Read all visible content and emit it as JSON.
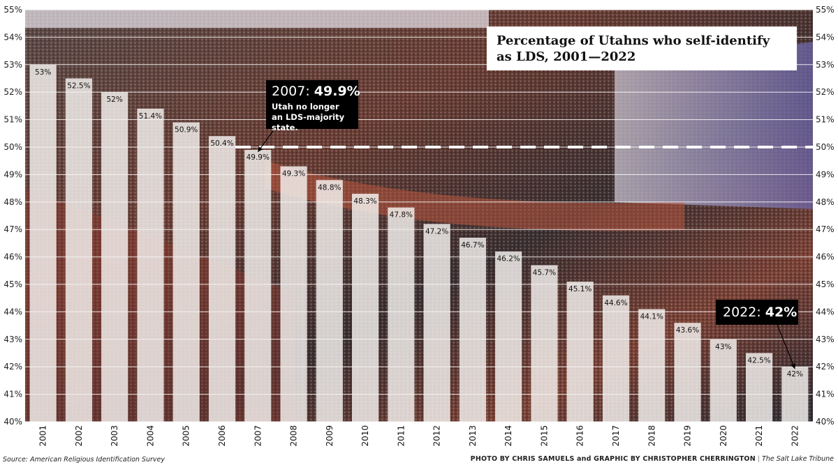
{
  "chart_data": {
    "type": "bar",
    "title": "Percentage of Utahns who self-identify as LDS, 2001—2022",
    "title_lines": [
      "Percentage of Utahns who self-identify",
      "as LDS, 2001—2022"
    ],
    "categories": [
      "2001",
      "2002",
      "2003",
      "2004",
      "2005",
      "2006",
      "2007",
      "2008",
      "2009",
      "2010",
      "2011",
      "2012",
      "2013",
      "2014",
      "2015",
      "2016",
      "2017",
      "2018",
      "2019",
      "2020",
      "2021",
      "2022"
    ],
    "values": [
      53,
      52.5,
      52,
      51.4,
      50.9,
      50.4,
      49.9,
      49.3,
      48.8,
      48.3,
      47.8,
      47.2,
      46.7,
      46.2,
      45.7,
      45.1,
      44.6,
      44.1,
      43.6,
      43,
      42.5,
      42
    ],
    "value_labels": [
      "53%",
      "52.5%",
      "52%",
      "51.4%",
      "50.9%",
      "50.4%",
      "49.9%",
      "49.3%",
      "48.8%",
      "48.3%",
      "47.8%",
      "47.2%",
      "46.7%",
      "46.2%",
      "45.7%",
      "45.1%",
      "44.6%",
      "44.1%",
      "43.6%",
      "43%",
      "42.5%",
      "42%"
    ],
    "ylim": [
      40,
      55
    ],
    "y_ticks": [
      40,
      41,
      42,
      43,
      44,
      45,
      46,
      47,
      48,
      49,
      50,
      51,
      52,
      53,
      54,
      55
    ],
    "y_tick_labels": [
      "40%",
      "41%",
      "42%",
      "43%",
      "44%",
      "45%",
      "46%",
      "47%",
      "48%",
      "49%",
      "50%",
      "51%",
      "52%",
      "53%",
      "54%",
      "55%"
    ],
    "y_axis_both_sides": true,
    "grid": true,
    "reference_line": {
      "value": 50,
      "style": "dashed"
    },
    "x_label_rotation": -90,
    "background": "photo of a large auditorium audience (not reproduced)",
    "annotations": [
      {
        "category": "2007",
        "head_prefix": "2007: ",
        "head_value": "49.9%",
        "note": "Utah no longer an LDS-majority state."
      },
      {
        "category": "2022",
        "head_prefix": "2022: ",
        "head_value": "42%",
        "note": ""
      }
    ]
  },
  "footer": {
    "source": "Source: American Religious Identification Survey",
    "credit": "PHOTO BY CHRIS SAMUELS and GRAPHIC BY CHRISTOPHER CHERRINGTON",
    "separator": "|",
    "publication": "The Salt Lake Tribune"
  },
  "colors": {
    "bar": "#f7f4f1",
    "photo_dark": "#2a2628",
    "photo_red": "#8a3a2e",
    "photo_accent": "#a8432f",
    "callout_bg": "#000000",
    "grid": "#ffffff"
  }
}
